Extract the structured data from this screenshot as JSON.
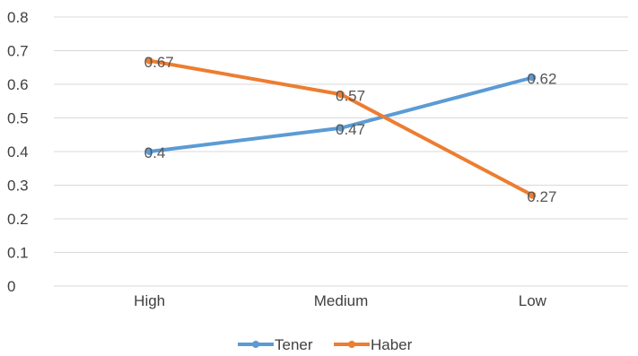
{
  "chart_data": {
    "type": "line",
    "categories": [
      "High",
      "Medium",
      "Low"
    ],
    "series": [
      {
        "name": "Tener",
        "values": [
          0.4,
          0.47,
          0.62
        ],
        "labels": [
          "0.4",
          "0.47",
          "0.62"
        ],
        "color": "#5b9bd5"
      },
      {
        "name": "Haber",
        "values": [
          0.67,
          0.57,
          0.27
        ],
        "labels": [
          "0.67",
          "0.57",
          "0.27"
        ],
        "color": "#ed7d31"
      }
    ],
    "yticks": [
      "0",
      "0.1",
      "0.2",
      "0.3",
      "0.4",
      "0.5",
      "0.6",
      "0.7",
      "0.8"
    ],
    "ylim": [
      0,
      0.8
    ],
    "grid": true,
    "legend_position": "bottom",
    "title": "",
    "xlabel": "",
    "ylabel": ""
  }
}
